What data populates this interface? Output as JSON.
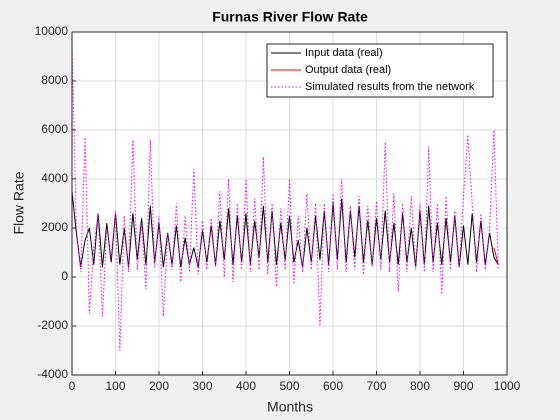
{
  "chart_data": {
    "type": "line",
    "title": "Furnas River Flow Rate",
    "xlabel": "Months",
    "ylabel": "Flow Rate",
    "x": [
      0,
      10,
      20,
      30,
      40,
      50,
      60,
      70,
      80,
      90,
      100,
      110,
      120,
      130,
      140,
      150,
      160,
      170,
      180,
      190,
      200,
      210,
      220,
      230,
      240,
      250,
      260,
      270,
      280,
      290,
      300,
      310,
      320,
      330,
      340,
      350,
      360,
      370,
      380,
      390,
      400,
      410,
      420,
      430,
      440,
      450,
      460,
      470,
      480,
      490,
      500,
      510,
      520,
      530,
      540,
      550,
      560,
      570,
      580,
      590,
      600,
      610,
      620,
      630,
      640,
      650,
      660,
      670,
      680,
      690,
      700,
      710,
      720,
      730,
      740,
      750,
      760,
      770,
      780,
      790,
      800,
      810,
      820,
      830,
      840,
      850,
      860,
      870,
      880,
      890,
      900,
      910,
      920,
      930,
      940,
      950,
      960,
      970,
      980
    ],
    "series": [
      {
        "name": "Input data (real)",
        "color": "#000000",
        "linestyle": "solid",
        "values": [
          3500,
          1800,
          400,
          1500,
          2000,
          500,
          2600,
          400,
          2200,
          600,
          2600,
          500,
          2000,
          400,
          2600,
          700,
          2400,
          500,
          2900,
          600,
          2200,
          400,
          1800,
          500,
          2100,
          400,
          1600,
          500,
          1200,
          400,
          1900,
          600,
          2100,
          500,
          2300,
          700,
          2800,
          500,
          2500,
          600,
          2600,
          500,
          2300,
          800,
          2900,
          600,
          2700,
          500,
          2200,
          700,
          2500,
          600,
          1500,
          400,
          2000,
          600,
          2500,
          700,
          2700,
          500,
          3000,
          700,
          3200,
          600,
          2700,
          800,
          2900,
          600,
          2300,
          500,
          2400,
          700,
          2700,
          600,
          2200,
          500,
          2600,
          600,
          2000,
          400,
          2700,
          500,
          2900,
          600,
          2200,
          500,
          2400,
          600,
          2500,
          400,
          2100,
          500,
          2600,
          600,
          2300,
          500,
          1800,
          800,
          500
        ]
      },
      {
        "name": "Output data (real)",
        "color": "#ff0000",
        "linestyle": "solid",
        "values": [
          null,
          null,
          null,
          null,
          null,
          null,
          null,
          null,
          null,
          null,
          null,
          null,
          null,
          null,
          null,
          null,
          null,
          null,
          null,
          null,
          null,
          null,
          null,
          null,
          null,
          null,
          null,
          null,
          null,
          null,
          null,
          null,
          null,
          null,
          null,
          null,
          null,
          null,
          null,
          null,
          null,
          null,
          null,
          null,
          null,
          null,
          null,
          null,
          null,
          null,
          null,
          null,
          null,
          null,
          null,
          null,
          null,
          null,
          null,
          null,
          null,
          null,
          null,
          null,
          null,
          null,
          null,
          null,
          null,
          null,
          null,
          null,
          null,
          null,
          null,
          null,
          null,
          null,
          null,
          null,
          null,
          null,
          null,
          null,
          null,
          null,
          null,
          null,
          null,
          null,
          null,
          null,
          null,
          null,
          null,
          null,
          null,
          1200,
          500
        ]
      },
      {
        "name": "Simulated results from the network",
        "color": "#ff00ff",
        "linestyle": "dotted",
        "values": [
          9500,
          2000,
          200,
          5700,
          -1500,
          1200,
          2600,
          -1600,
          2000,
          800,
          2700,
          -3000,
          2500,
          200,
          5600,
          300,
          2200,
          -500,
          5600,
          400,
          2500,
          -1600,
          1800,
          300,
          3000,
          -200,
          2500,
          200,
          4400,
          100,
          2300,
          300,
          2400,
          400,
          3500,
          0,
          4000,
          -200,
          3000,
          300,
          4000,
          200,
          3200,
          300,
          4900,
          100,
          3000,
          -400,
          2800,
          300,
          4000,
          -300,
          2500,
          200,
          3400,
          300,
          3000,
          -2000,
          3000,
          200,
          3400,
          300,
          4000,
          200,
          2900,
          300,
          3300,
          100,
          2900,
          400,
          3100,
          300,
          5500,
          200,
          3400,
          -600,
          3000,
          200,
          3300,
          300,
          3000,
          200,
          5300,
          200,
          3000,
          -700,
          3300,
          300,
          2700,
          400,
          3300,
          5800,
          3000,
          200,
          2600,
          300,
          2000,
          6000,
          300
        ]
      }
    ],
    "xlim": [
      0,
      1000
    ],
    "xticks": [
      0,
      100,
      200,
      300,
      400,
      500,
      600,
      700,
      800,
      900,
      1000
    ],
    "ylim": [
      -4000,
      10000
    ],
    "yticks": [
      -4000,
      -2000,
      0,
      2000,
      4000,
      6000,
      8000,
      10000
    ],
    "grid": true,
    "legend": "northeast"
  }
}
